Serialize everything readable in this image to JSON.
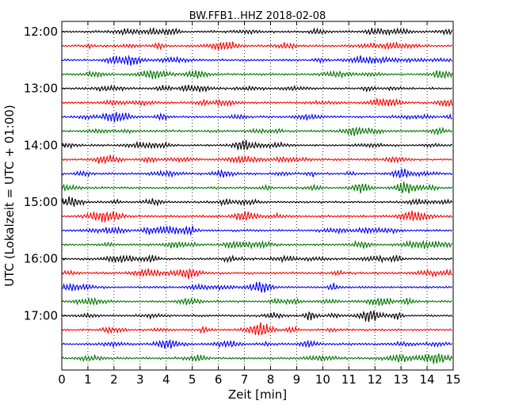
{
  "chart_data": {
    "type": "line",
    "title": "BW.FFB1..HHZ 2018-02-08",
    "xlabel": "Zeit  [min]",
    "ylabel": "UTC (Lokalzeit = UTC + 01:00)",
    "xlim": [
      0,
      15
    ],
    "x_ticks": [
      "0",
      "1",
      "2",
      "3",
      "4",
      "5",
      "6",
      "7",
      "8",
      "9",
      "10",
      "11",
      "12",
      "13",
      "14",
      "15"
    ],
    "y_ticks": [
      "12:00",
      "13:00",
      "14:00",
      "15:00",
      "16:00",
      "17:00"
    ],
    "grid": "vertical-dotted",
    "trace_minutes": 15,
    "trace_colors": [
      "#000000",
      "#ff0000",
      "#0000ff",
      "#007700"
    ],
    "traces": [
      "12:00",
      "12:15",
      "12:30",
      "12:45",
      "13:00",
      "13:15",
      "13:30",
      "13:45",
      "14:00",
      "14:15",
      "14:30",
      "14:45",
      "15:00",
      "15:15",
      "15:30",
      "15:45",
      "16:00",
      "16:15",
      "16:30",
      "16:45",
      "17:00",
      "17:15",
      "17:30",
      "17:45"
    ]
  }
}
